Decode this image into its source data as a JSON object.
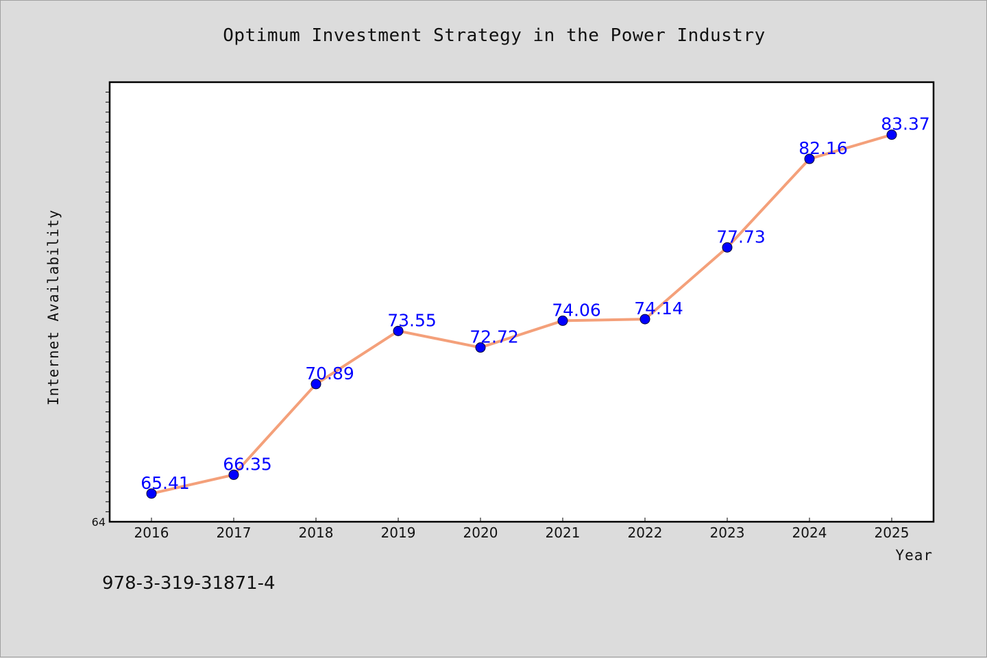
{
  "chart_data": {
    "type": "line",
    "title": "Optimum Investment Strategy in the Power Industry",
    "xlabel": "Year",
    "ylabel": "Internet Availability",
    "categories": [
      "2016",
      "2017",
      "2018",
      "2019",
      "2020",
      "2021",
      "2022",
      "2023",
      "2024",
      "2025"
    ],
    "values": [
      65.41,
      66.35,
      70.89,
      73.55,
      72.72,
      74.06,
      74.14,
      77.73,
      82.16,
      83.37
    ],
    "data_labels": [
      "65.41",
      "66.35",
      "70.89",
      "73.55",
      "72.72",
      "74.06",
      "74.14",
      "77.73",
      "82.16",
      "83.37"
    ],
    "ylim": [
      64,
      86
    ],
    "y_tick_labels": [
      "64"
    ],
    "grid": false,
    "legend": "none",
    "colors": {
      "line": "#f4a07a",
      "marker": "#0000ff",
      "data_label": "#0000ff",
      "plot_background": "#ffffff",
      "page_background": "#dcdcdc"
    }
  },
  "footer": {
    "isbn": "978-3-319-31871-4"
  }
}
